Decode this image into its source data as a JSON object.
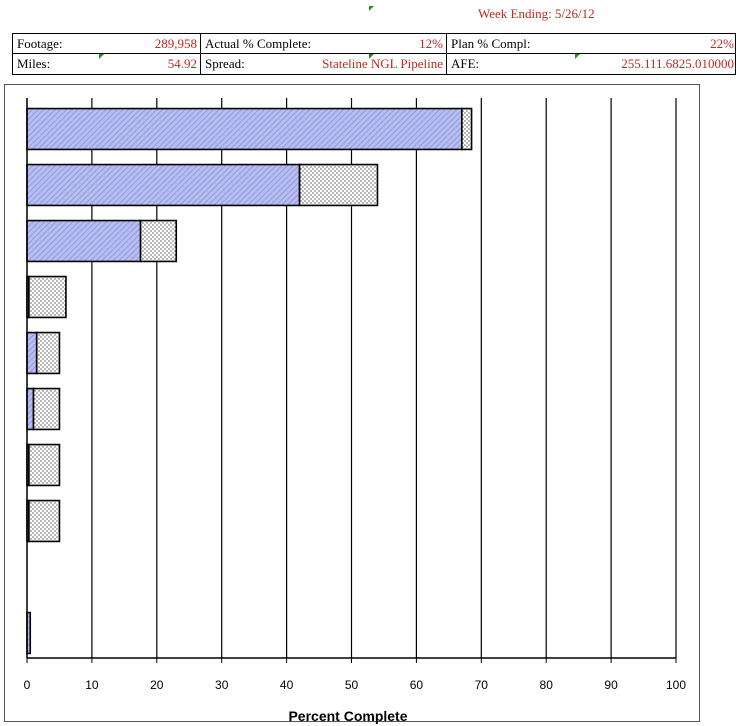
{
  "header": {
    "week_ending": "Week Ending: 5/26/12",
    "footage_label": "Footage:",
    "footage_value": "289,958",
    "actual_label": "Actual % Complete:",
    "actual_value": "12%",
    "plan_label": "Plan % Compl:",
    "plan_value": "22%",
    "miles_label": "Miles:",
    "miles_value": "54.92",
    "spread_label": "Spread:",
    "spread_value": "Stateline NGL Pipeline",
    "afe_label": "AFE:",
    "afe_value": "255.111.6825.010000"
  },
  "chart_data": {
    "type": "bar",
    "orientation": "horizontal",
    "stacked": true,
    "xlabel": "Percent Complete",
    "ylabel": "",
    "xlim": [
      0,
      100
    ],
    "xticks": [
      0,
      10,
      20,
      30,
      40,
      50,
      60,
      70,
      80,
      90,
      100
    ],
    "grid": true,
    "categories": [
      "",
      "",
      "",
      "",
      "",
      "",
      "",
      "",
      "",
      ""
    ],
    "series": [
      {
        "values": [
          67,
          42,
          17.5,
          0.3,
          1.5,
          1,
          0.3,
          0.3,
          0,
          0.5
        ]
      },
      {
        "values": [
          1.5,
          12,
          5.5,
          5.7,
          3.5,
          4,
          4.7,
          4.7,
          0,
          0
        ]
      }
    ],
    "colors": {
      "actual_fill": "#b8bef0",
      "actual_hatch": "#8088d8",
      "plan_fill": "#ffffff",
      "plan_dots": "#000000"
    }
  }
}
